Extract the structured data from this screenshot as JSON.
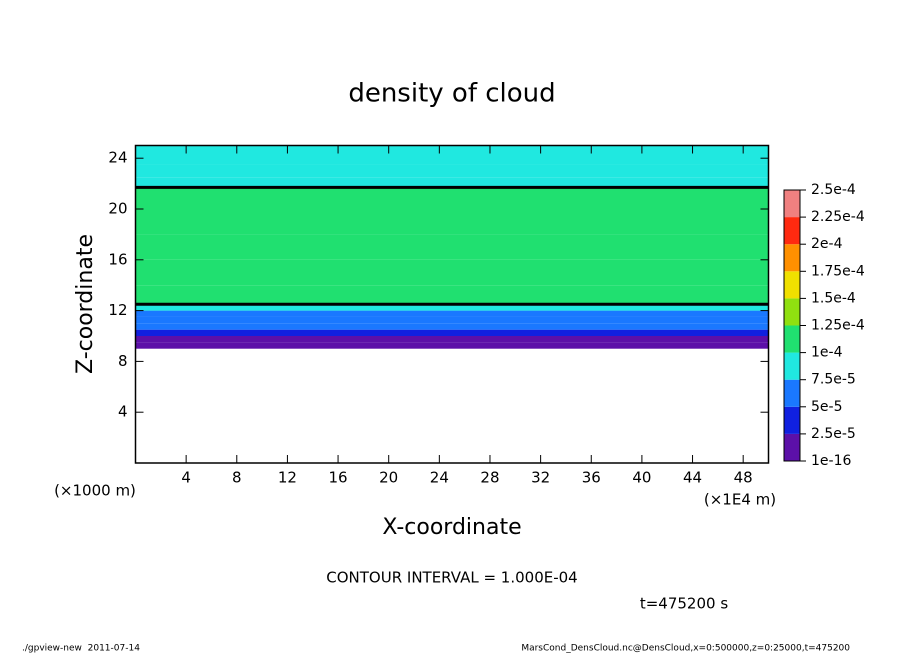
{
  "chart_data": {
    "type": "heatmap",
    "title": "density of cloud",
    "x_label": "X-coordinate",
    "y_label": "Z-coordinate",
    "x_unit": "(×1E4 m)",
    "y_unit": "(×1000 m)",
    "xlim": [
      0,
      50
    ],
    "xticks": [
      4,
      8,
      12,
      16,
      20,
      24,
      28,
      32,
      36,
      40,
      44,
      48
    ],
    "ylim": [
      0,
      25
    ],
    "yticks": [
      4,
      8,
      12,
      16,
      20,
      24
    ],
    "z": [
      9,
      9.5,
      10,
      10.5,
      11,
      11.5,
      12,
      12.5,
      14,
      16,
      18,
      20,
      21.7,
      22.5,
      23.5,
      25
    ],
    "values": [
      1e-05,
      2e-05,
      3.5e-05,
      5e-05,
      6e-05,
      7e-05,
      8.8e-05,
      0.000105,
      0.00011,
      0.000112,
      0.00011,
      0.000105,
      9e-05,
      8.5e-05,
      8e-05
    ],
    "colorbar_ticks": [
      1e-16,
      {
        "value": 2.5e-05,
        "label": "2.5e-5"
      },
      {
        "value": 5e-05,
        "label": "5e-5"
      },
      {
        "value": 7.5e-05,
        "label": "7.5e-5"
      },
      {
        "value": 0.0001,
        "label": "1e-4"
      },
      {
        "value": 0.000125,
        "label": "1.25e-4"
      },
      {
        "value": 0.00015,
        "label": "1.5e-4"
      },
      {
        "value": 0.000175,
        "label": "1.75e-4"
      },
      {
        "value": 0.0002,
        "label": "2e-4"
      },
      {
        "value": 0.000225,
        "label": "2.25e-4"
      },
      {
        "value": 0.00025,
        "label": "2.5e-4"
      }
    ],
    "colors": [
      "#5c10a8",
      "#1020e0",
      "#1a78ff",
      "#20e8e0",
      "#20e070",
      "#90e010",
      "#f0e000",
      "#ff9000",
      "#ff2a10",
      "#f08080"
    ],
    "contour_level": 0.0001,
    "contour_color": "#000000",
    "contour_note": "CONTOUR INTERVAL = 1.000E-04",
    "time_label": "t=475200 s",
    "footer_left": "./gpview-new  2011-07-14",
    "footer_right": "MarsCond_DensCloud.nc@DensCloud,x=0:500000,z=0:25000,t=475200"
  }
}
